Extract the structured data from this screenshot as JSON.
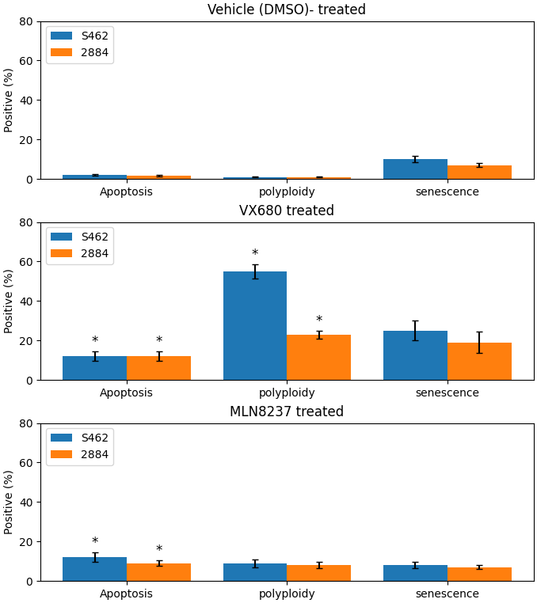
{
  "chart_data": [
    {
      "type": "bar",
      "title": "Vehicle (DMSO)- treated",
      "y_label": "Positive (%)",
      "categories": [
        "Apoptosis",
        "polyploidy",
        "senescence"
      ],
      "series": [
        {
          "name": "S462",
          "values": [
            2.0,
            1.0,
            10.0
          ],
          "error": [
            0.5,
            0.3,
            1.5
          ]
        },
        {
          "name": "2884",
          "values": [
            1.5,
            1.0,
            7.0
          ],
          "error": [
            0.4,
            0.3,
            1.0
          ]
        }
      ],
      "ylim": [
        0,
        80
      ],
      "yticks": [
        0,
        20,
        40,
        60,
        80
      ],
      "legend": "upper left"
    },
    {
      "type": "bar",
      "title": "VX680 treated",
      "y_label": "Positive (%)",
      "categories": [
        "Apoptosis",
        "polyploidy",
        "senescence"
      ],
      "series": [
        {
          "name": "S462",
          "values": [
            12.0,
            55.0,
            25.0
          ],
          "error": [
            2.5,
            3.5,
            5.0
          ]
        },
        {
          "name": "2884",
          "values": [
            12.0,
            23.0,
            19.0
          ],
          "error": [
            2.5,
            2.0,
            5.5
          ]
        }
      ],
      "ylim": [
        0,
        80
      ],
      "yticks": [
        0,
        20,
        40,
        60,
        80
      ],
      "legend": "upper left",
      "annotations": [
        {
          "text": "*",
          "series": "S462",
          "category": "Apoptosis"
        },
        {
          "text": "*",
          "series": "S462",
          "category": "polyploidy"
        },
        {
          "text": "*",
          "series": "2884",
          "category": "Apoptosis"
        },
        {
          "text": "*",
          "series": "2884",
          "category": "polyploidy"
        }
      ]
    },
    {
      "type": "bar",
      "title": "MLN8237 treated",
      "y_label": "Positive (%)",
      "categories": [
        "Apoptosis",
        "polyploidy",
        "senescence"
      ],
      "series": [
        {
          "name": "S462",
          "values": [
            12.0,
            9.0,
            8.0
          ],
          "error": [
            2.5,
            2.0,
            1.5
          ]
        },
        {
          "name": "2884",
          "values": [
            9.0,
            8.0,
            7.0
          ],
          "error": [
            1.5,
            1.5,
            1.0
          ]
        }
      ],
      "ylim": [
        0,
        80
      ],
      "yticks": [
        0,
        20,
        40,
        60,
        80
      ],
      "legend": "upper left",
      "annotations": [
        {
          "text": "*",
          "series": "S462",
          "category": "Apoptosis"
        },
        {
          "text": "*",
          "series": "2884",
          "category": "Apoptosis"
        }
      ]
    }
  ]
}
